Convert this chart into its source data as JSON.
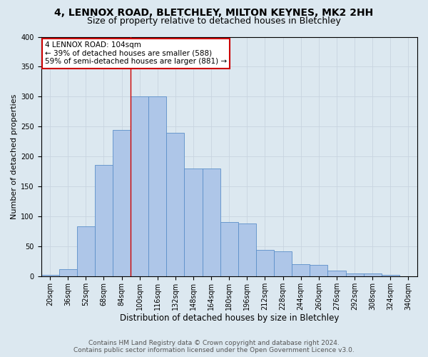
{
  "title": "4, LENNOX ROAD, BLETCHLEY, MILTON KEYNES, MK2 2HH",
  "subtitle": "Size of property relative to detached houses in Bletchley",
  "xlabel": "Distribution of detached houses by size in Bletchley",
  "ylabel": "Number of detached properties",
  "bar_values": [
    2,
    12,
    83,
    186,
    244,
    300,
    300,
    240,
    180,
    180,
    90,
    88,
    44,
    42,
    20,
    19,
    10,
    5,
    5,
    2,
    0
  ],
  "bin_labels": [
    "20sqm",
    "36sqm",
    "52sqm",
    "68sqm",
    "84sqm",
    "100sqm",
    "116sqm",
    "132sqm",
    "148sqm",
    "164sqm",
    "180sqm",
    "196sqm",
    "212sqm",
    "228sqm",
    "244sqm",
    "260sqm",
    "276sqm",
    "292sqm",
    "308sqm",
    "324sqm",
    "340sqm"
  ],
  "bar_color": "#aec6e8",
  "bar_edge_color": "#5b8fc9",
  "grid_color": "#c8d4e0",
  "background_color": "#dce8f0",
  "vline_x_index": 5,
  "vline_color": "#cc0000",
  "annotation_text": "4 LENNOX ROAD: 104sqm\n← 39% of detached houses are smaller (588)\n59% of semi-detached houses are larger (881) →",
  "annotation_box_facecolor": "#ffffff",
  "annotation_box_edgecolor": "#cc0000",
  "ylim": [
    0,
    400
  ],
  "yticks": [
    0,
    50,
    100,
    150,
    200,
    250,
    300,
    350,
    400
  ],
  "footnote": "Contains HM Land Registry data © Crown copyright and database right 2024.\nContains public sector information licensed under the Open Government Licence v3.0.",
  "title_fontsize": 10,
  "subtitle_fontsize": 9,
  "xlabel_fontsize": 8.5,
  "ylabel_fontsize": 8,
  "tick_fontsize": 7,
  "annotation_fontsize": 7.5,
  "footnote_fontsize": 6.5
}
